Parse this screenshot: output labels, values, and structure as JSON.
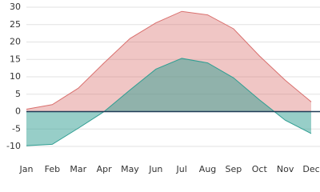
{
  "chart_data": {
    "type": "area",
    "categories": [
      "Jan",
      "Feb",
      "Mar",
      "Apr",
      "May",
      "Jun",
      "Jul",
      "Aug",
      "Sep",
      "Oct",
      "Nov",
      "Dec"
    ],
    "series": [
      {
        "color": "#d9706e",
        "values": [
          0.7,
          2,
          6.7,
          14,
          21,
          25.5,
          28.8,
          27.8,
          23.8,
          16,
          9,
          2.8
        ]
      },
      {
        "color": "#2f9e92",
        "values": [
          -9.8,
          -9.4,
          -4.8,
          0,
          6.2,
          12.2,
          15.3,
          14,
          9.7,
          3.4,
          -2.5,
          -6.3
        ]
      }
    ],
    "ylim": [
      -10,
      30
    ],
    "yticks": [
      -10,
      -5,
      0,
      5,
      10,
      15,
      20,
      25,
      30
    ],
    "grid": true
  }
}
